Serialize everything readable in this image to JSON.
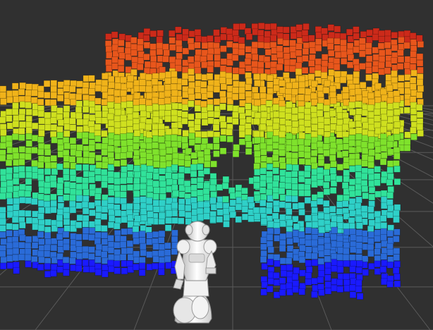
{
  "view": {
    "background": "#303030",
    "grid_color": "#5a5a5a"
  },
  "octomap": {
    "colormap": "height",
    "height_colors": [
      "#1a1aff",
      "#2a6bd8",
      "#2fd0c8",
      "#31e29a",
      "#7fe22c",
      "#cfe01f",
      "#f0b31a",
      "#e8561c",
      "#cc2a1a"
    ],
    "robot": "nao-humanoid"
  }
}
